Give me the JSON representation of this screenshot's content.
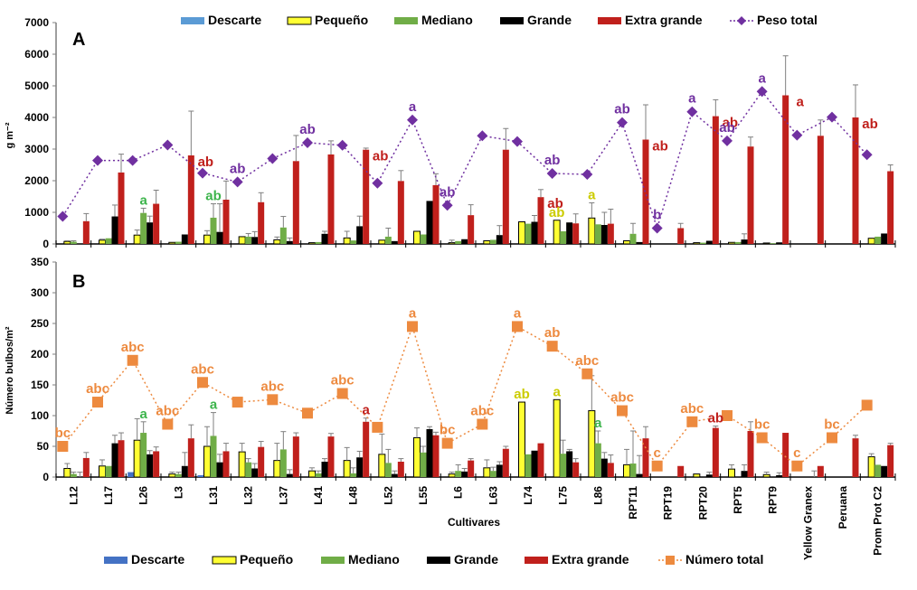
{
  "chart_data": [
    {
      "panel": "A",
      "type": "bar",
      "panel_label": "A",
      "title": "",
      "xlabel": "",
      "ylabel": "g m⁻²",
      "ylim": [
        0,
        7000
      ],
      "yticks": [
        0,
        1000,
        2000,
        3000,
        4000,
        5000,
        6000,
        7000
      ],
      "grid": false,
      "legend_position": "top",
      "legend": [
        "Descarte",
        "Pequeño",
        "Mediano",
        "Grande",
        "Extra grande",
        "Peso total"
      ],
      "categories": [
        "L12",
        "L17",
        "L26",
        "L3",
        "L31",
        "L32",
        "L37",
        "L41",
        "L48",
        "L52",
        "L55",
        "L6",
        "L63",
        "L74",
        "L75",
        "L86",
        "RPT11",
        "RPT19",
        "RPT20",
        "RPT5",
        "RPT9",
        "Yellow Granex",
        "Peruana",
        "Prom Prot C2"
      ],
      "series": [
        {
          "name": "Descarte",
          "color": "#5b9bd5",
          "values": [
            0,
            0,
            0,
            0,
            0,
            0,
            0,
            0,
            0,
            0,
            0,
            0,
            0,
            0,
            0,
            0,
            0,
            0,
            0,
            0,
            0,
            0,
            0,
            0
          ]
        },
        {
          "name": "Pequeño",
          "color": "#ffff33",
          "outline": "#000000",
          "values": [
            80,
            120,
            280,
            50,
            280,
            230,
            130,
            40,
            190,
            120,
            400,
            40,
            100,
            700,
            750,
            820,
            100,
            0,
            40,
            50,
            30,
            0,
            0,
            180
          ]
        },
        {
          "name": "Mediano",
          "color": "#70ad47",
          "values": [
            70,
            180,
            980,
            70,
            830,
            230,
            520,
            60,
            110,
            230,
            300,
            90,
            130,
            640,
            400,
            620,
            320,
            0,
            40,
            60,
            20,
            0,
            0,
            230
          ]
        },
        {
          "name": "Grande",
          "color": "#000000",
          "values": [
            10,
            870,
            680,
            300,
            380,
            220,
            90,
            320,
            560,
            90,
            1360,
            150,
            280,
            700,
            680,
            600,
            60,
            0,
            100,
            140,
            50,
            0,
            0,
            330
          ]
        },
        {
          "name": "Extra grande",
          "color": "#c0201c",
          "values": [
            720,
            2260,
            1270,
            2800,
            1400,
            1320,
            2620,
            2830,
            2980,
            1990,
            1860,
            910,
            2980,
            1480,
            650,
            640,
            3300,
            500,
            4040,
            3080,
            4700,
            3420,
            4000,
            2300
          ]
        },
        {
          "name": "Peso total",
          "type": "line",
          "color": "#7030a0",
          "marker": "diamond",
          "values": [
            870,
            2640,
            2640,
            3130,
            2240,
            1960,
            2700,
            3200,
            3120,
            1920,
            3920,
            1220,
            3420,
            3240,
            2230,
            2200,
            3840,
            500,
            4180,
            3260,
            4820,
            3440,
            4010,
            2820
          ]
        }
      ],
      "error_bars": {
        "Extra grande": [
          960,
          2840,
          1700,
          4200,
          1990,
          1620,
          3430,
          3260,
          3030,
          2320,
          2220,
          1240,
          3650,
          1720,
          950,
          1100,
          4400,
          650,
          4560,
          3380,
          5950,
          3920,
          5030,
          2500
        ],
        "Grande": [
          0,
          1230,
          880,
          0,
          1270,
          390,
          190,
          400,
          880,
          0,
          0,
          0,
          580,
          900,
          0,
          1000,
          0,
          0,
          0,
          320,
          0,
          0,
          0,
          0
        ],
        "Mediano": [
          100,
          0,
          1130,
          0,
          1270,
          330,
          870,
          0,
          0,
          500,
          0,
          0,
          0,
          0,
          0,
          0,
          650,
          0,
          0,
          0,
          0,
          0,
          0,
          0
        ],
        "Pequeño": [
          100,
          150,
          440,
          0,
          420,
          0,
          220,
          0,
          400,
          0,
          0,
          120,
          0,
          0,
          0,
          1300,
          0,
          0,
          0,
          0,
          0,
          0,
          0,
          0
        ]
      },
      "annotations": [
        {
          "category": "L26",
          "series": "Mediano",
          "text": "a",
          "color": "#3cb44b"
        },
        {
          "category": "L31",
          "series": "Mediano",
          "text": "ab",
          "color": "#3cb44b"
        },
        {
          "category": "L3",
          "series": "Extra grande",
          "text": "ab",
          "color": "#c0201c"
        },
        {
          "category": "L32",
          "series": "Peso total",
          "text": "ab",
          "color": "#7030a0"
        },
        {
          "category": "L41",
          "series": "Peso total",
          "text": "ab",
          "color": "#7030a0"
        },
        {
          "category": "L48",
          "series": "Extra grande",
          "text": "ab",
          "color": "#c0201c"
        },
        {
          "category": "L55",
          "series": "Peso total",
          "text": "a",
          "color": "#7030a0"
        },
        {
          "category": "L6",
          "series": "Peso total",
          "text": "ab",
          "color": "#7030a0"
        },
        {
          "category": "L74",
          "series": "Extra grande",
          "text": "ab",
          "color": "#c0201c"
        },
        {
          "category": "L75",
          "series": "Pequeño",
          "text": "ab",
          "color": "#cccc00"
        },
        {
          "category": "L75",
          "series": "Peso total",
          "text": "ab",
          "color": "#7030a0"
        },
        {
          "category": "L86",
          "series": "Pequeño",
          "text": "a",
          "color": "#cccc00"
        },
        {
          "category": "RPT11",
          "series": "Peso total",
          "text": "ab",
          "color": "#7030a0"
        },
        {
          "category": "RPT11",
          "series": "Extra grande",
          "text": "ab",
          "color": "#c0201c"
        },
        {
          "category": "RPT19",
          "series": "Peso total",
          "text": "b",
          "color": "#7030a0"
        },
        {
          "category": "RPT20",
          "series": "Peso total",
          "text": "a",
          "color": "#7030a0"
        },
        {
          "category": "RPT20",
          "series": "Extra grande",
          "text": "ab",
          "color": "#c0201c"
        },
        {
          "category": "RPT5",
          "series": "Peso total",
          "text": "ab",
          "color": "#7030a0"
        },
        {
          "category": "RPT9",
          "series": "Peso total",
          "text": "a",
          "color": "#7030a0"
        },
        {
          "category": "RPT9",
          "series": "Extra grande",
          "text": "a",
          "color": "#c0201c"
        },
        {
          "category": "Peruana",
          "series": "Extra grande",
          "text": "ab",
          "color": "#c0201c"
        }
      ]
    },
    {
      "panel": "B",
      "type": "bar",
      "panel_label": "B",
      "title": "",
      "xlabel": "Cultivares",
      "ylabel": "Número bulbos/m²",
      "ylim": [
        0,
        350
      ],
      "yticks": [
        0,
        50,
        100,
        150,
        200,
        250,
        300,
        350
      ],
      "grid": false,
      "legend_position": "bottom",
      "legend": [
        "Descarte",
        "Pequeño",
        "Mediano",
        "Grande",
        "Extra grande",
        "Número total"
      ],
      "categories": [
        "L12",
        "L17",
        "L26",
        "L3",
        "L31",
        "L32",
        "L37",
        "L41",
        "L48",
        "L52",
        "L55",
        "L6",
        "L63",
        "L74",
        "L75",
        "L86",
        "RPT11",
        "RPT19",
        "RPT20",
        "RPT5",
        "RPT9",
        "Yellow Granex",
        "Peruana",
        "Prom Prot C2"
      ],
      "series": [
        {
          "name": "Descarte",
          "color": "#4472c4",
          "values": [
            0,
            0,
            8,
            0,
            3,
            0,
            0,
            0,
            0,
            0,
            0,
            0,
            0,
            0,
            0,
            0,
            0,
            0,
            0,
            0,
            0,
            0,
            0,
            0
          ]
        },
        {
          "name": "Pequeño",
          "color": "#ffff33",
          "outline": "#000000",
          "values": [
            14,
            18,
            60,
            5,
            50,
            41,
            27,
            10,
            27,
            37,
            64,
            5,
            15,
            122,
            126,
            108,
            20,
            0,
            5,
            13,
            4,
            0,
            0,
            33
          ]
        },
        {
          "name": "Mediano",
          "color": "#70ad47",
          "values": [
            5,
            18,
            72,
            5,
            67,
            24,
            45,
            6,
            6,
            23,
            40,
            10,
            10,
            37,
            38,
            55,
            22,
            0,
            0,
            0,
            0,
            0,
            0,
            20
          ]
        },
        {
          "name": "Grande",
          "color": "#000000",
          "values": [
            0,
            55,
            37,
            18,
            24,
            14,
            5,
            25,
            32,
            5,
            78,
            9,
            20,
            43,
            42,
            30,
            5,
            0,
            4,
            10,
            3,
            0,
            0,
            18
          ]
        },
        {
          "name": "Extra grande",
          "color": "#c0201c",
          "values": [
            31,
            60,
            42,
            63,
            42,
            49,
            66,
            66,
            90,
            25,
            68,
            27,
            46,
            55,
            24,
            23,
            63,
            18,
            80,
            75,
            72,
            18,
            63,
            52
          ]
        },
        {
          "name": "Número total",
          "type": "line",
          "color": "#ed8a3f",
          "marker": "square",
          "values": [
            50,
            122,
            190,
            86,
            154,
            122,
            126,
            104,
            136,
            81,
            245,
            55,
            86,
            245,
            213,
            168,
            108,
            18,
            90,
            100,
            64,
            18,
            64,
            117
          ]
        }
      ],
      "error_bars": {
        "Pequeño": [
          22,
          28,
          95,
          8,
          82,
          55,
          55,
          15,
          48,
          70,
          80,
          8,
          28,
          0,
          0,
          165,
          45,
          0,
          0,
          20,
          8,
          0,
          0,
          38
        ],
        "Mediano": [
          8,
          0,
          90,
          8,
          105,
          30,
          74,
          10,
          15,
          45,
          50,
          20,
          16,
          0,
          60,
          75,
          75,
          0,
          0,
          0,
          0,
          0,
          0,
          0
        ],
        "Grande": [
          8,
          68,
          43,
          40,
          37,
          22,
          12,
          30,
          42,
          10,
          82,
          14,
          25,
          0,
          45,
          40,
          35,
          0,
          8,
          20,
          7,
          10,
          0,
          0
        ],
        "Extra grande": [
          40,
          72,
          49,
          85,
          55,
          58,
          72,
          71,
          96,
          30,
          73,
          30,
          50,
          0,
          30,
          36,
          82,
          0,
          83,
          90,
          0,
          0,
          68,
          55
        ]
      },
      "annotations": [
        {
          "category": "L12",
          "series": "Número total",
          "text": "bc",
          "color": "#ed8a3f"
        },
        {
          "category": "L17",
          "series": "Número total",
          "text": "abc",
          "color": "#ed8a3f"
        },
        {
          "category": "L26",
          "series": "Número total",
          "text": "abc",
          "color": "#ed8a3f"
        },
        {
          "category": "L26",
          "series": "Mediano",
          "text": "a",
          "color": "#3cb44b"
        },
        {
          "category": "L3",
          "series": "Número total",
          "text": "abc",
          "color": "#ed8a3f"
        },
        {
          "category": "L31",
          "series": "Número total",
          "text": "abc",
          "color": "#ed8a3f"
        },
        {
          "category": "L31",
          "series": "Mediano",
          "text": "a",
          "color": "#3cb44b"
        },
        {
          "category": "L37",
          "series": "Número total",
          "text": "abc",
          "color": "#ed8a3f"
        },
        {
          "category": "L48",
          "series": "Número total",
          "text": "abc",
          "color": "#ed8a3f"
        },
        {
          "category": "L48",
          "series": "Extra grande",
          "text": "a",
          "color": "#c0201c"
        },
        {
          "category": "L55",
          "series": "Número total",
          "text": "a",
          "color": "#ed8a3f"
        },
        {
          "category": "L6",
          "series": "Número total",
          "text": "bc",
          "color": "#ed8a3f"
        },
        {
          "category": "L63",
          "series": "Número total",
          "text": "abc",
          "color": "#ed8a3f"
        },
        {
          "category": "L74",
          "series": "Número total",
          "text": "a",
          "color": "#ed8a3f"
        },
        {
          "category": "L74",
          "series": "Pequeño",
          "text": "ab",
          "color": "#cccc00"
        },
        {
          "category": "L75",
          "series": "Número total",
          "text": "ab",
          "color": "#ed8a3f"
        },
        {
          "category": "L75",
          "series": "Pequeño",
          "text": "a",
          "color": "#cccc00"
        },
        {
          "category": "L86",
          "series": "Número total",
          "text": "abc",
          "color": "#ed8a3f"
        },
        {
          "category": "L86",
          "series": "Mediano",
          "text": "a",
          "color": "#3cb44b"
        },
        {
          "category": "RPT11",
          "series": "Número total",
          "text": "abc",
          "color": "#ed8a3f"
        },
        {
          "category": "RPT19",
          "series": "Número total",
          "text": "c",
          "color": "#ed8a3f"
        },
        {
          "category": "RPT20",
          "series": "Número total",
          "text": "abc",
          "color": "#ed8a3f"
        },
        {
          "category": "RPT20",
          "series": "Extra grande",
          "text": "ab",
          "color": "#c0201c"
        },
        {
          "category": "RPT9",
          "series": "Número total",
          "text": "bc",
          "color": "#ed8a3f"
        },
        {
          "category": "Yellow Granex",
          "series": "Número total",
          "text": "c",
          "color": "#ed8a3f"
        },
        {
          "category": "Peruana",
          "series": "Número total",
          "text": "bc",
          "color": "#ed8a3f"
        }
      ]
    }
  ]
}
